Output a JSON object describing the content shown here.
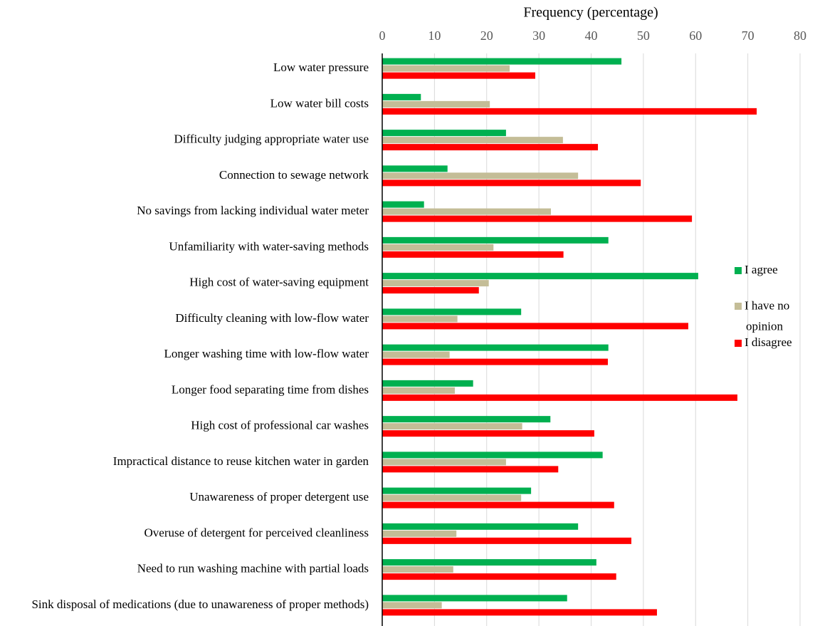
{
  "chart_data": {
    "type": "barh",
    "xlabel": "Frequency (percentage)",
    "categories": [
      "Low water pressure",
      "Low water bill costs",
      "Difficulty judging appropriate water use",
      "Connection to sewage network",
      "No savings from lacking individual water meter",
      "Unfamiliarity with water-saving methods",
      "High cost of water-saving equipment",
      "Difficulty cleaning with low-flow water",
      "Longer washing time with low-flow water",
      "Longer food separating time from dishes",
      "High cost of professional car washes",
      "Impractical distance to reuse kitchen water in garden",
      "Unawareness of proper detergent use",
      "Overuse of detergent for perceived cleanliness",
      "Need to run washing machine with partial loads",
      "Sink disposal of medications (due to unawareness of proper methods)"
    ],
    "series": [
      {
        "name": "I agree",
        "color": "#00b050",
        "values": [
          45.8,
          7.4,
          23.7,
          12.5,
          8.0,
          43.3,
          60.5,
          26.6,
          43.3,
          17.4,
          32.2,
          42.2,
          28.5,
          37.5,
          41.0,
          35.4
        ]
      },
      {
        "name": "I have no opinion",
        "color": "#c4bd97",
        "values": [
          24.4,
          20.6,
          34.6,
          37.5,
          32.3,
          21.3,
          20.4,
          14.4,
          12.9,
          13.9,
          26.8,
          23.7,
          26.6,
          14.2,
          13.6,
          11.4
        ]
      },
      {
        "name": "I disagree",
        "color": "#ff0000",
        "values": [
          29.3,
          71.7,
          41.3,
          49.5,
          59.3,
          34.7,
          18.5,
          58.6,
          43.2,
          68.0,
          40.6,
          33.7,
          44.4,
          47.7,
          44.8,
          52.6
        ]
      }
    ],
    "xlim": [
      0,
      80
    ],
    "xticks": [
      0,
      10,
      20,
      30,
      40,
      50,
      60,
      70,
      80
    ],
    "grid": true,
    "legend": "right"
  }
}
